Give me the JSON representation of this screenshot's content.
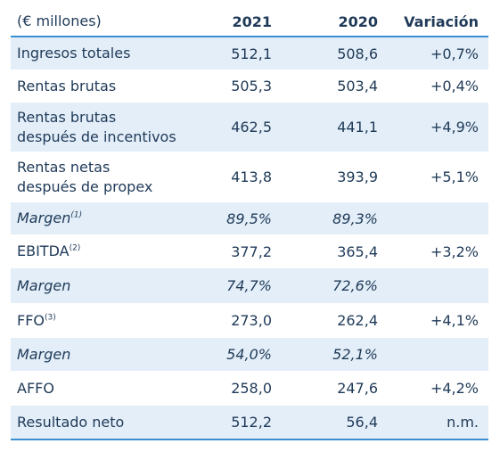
{
  "header": {
    "label": "(€ millones)",
    "col_2021": "2021",
    "col_2020": "2020",
    "col_var": "Variación"
  },
  "rows": [
    {
      "label": "Ingresos totales",
      "sup": "",
      "v2021": "512,1",
      "v2020": "508,6",
      "var": "+0,7%"
    },
    {
      "label": "Rentas brutas",
      "sup": "",
      "v2021": "505,3",
      "v2020": "503,4",
      "var": "+0,4%"
    },
    {
      "label_line1": "Rentas brutas",
      "label_line2": "después de incentivos",
      "v2021": "462,5",
      "v2020": "441,1",
      "var": "+4,9%"
    },
    {
      "label_line1": "Rentas netas",
      "label_line2": "después de propex",
      "v2021": "413,8",
      "v2020": "393,9",
      "var": "+5,1%"
    },
    {
      "label": "Margen",
      "sup": "(1)",
      "v2021": "89,5%",
      "v2020": "89,3%",
      "var": ""
    },
    {
      "label": "EBITDA",
      "sup": "(2)",
      "v2021": "377,2",
      "v2020": "365,4",
      "var": "+3,2%"
    },
    {
      "label": "Margen",
      "sup": "",
      "v2021": "74,7%",
      "v2020": "72,6%",
      "var": ""
    },
    {
      "label": "FFO",
      "sup": "(3)",
      "v2021": "273,0",
      "v2020": "262,4",
      "var": "+4,1%"
    },
    {
      "label": "Margen",
      "sup": "",
      "v2021": "54,0%",
      "v2020": "52,1%",
      "var": ""
    },
    {
      "label": "AFFO",
      "sup": "",
      "v2021": "258,0",
      "v2020": "247,6",
      "var": "+4,2%"
    },
    {
      "label": "Resultado neto",
      "sup": "",
      "v2021": "512,2",
      "v2020": "56,4",
      "var": "n.m."
    }
  ],
  "colors": {
    "text": "#1f3a58",
    "shade": "#e3eef8",
    "rule": "#3b8fd0"
  }
}
